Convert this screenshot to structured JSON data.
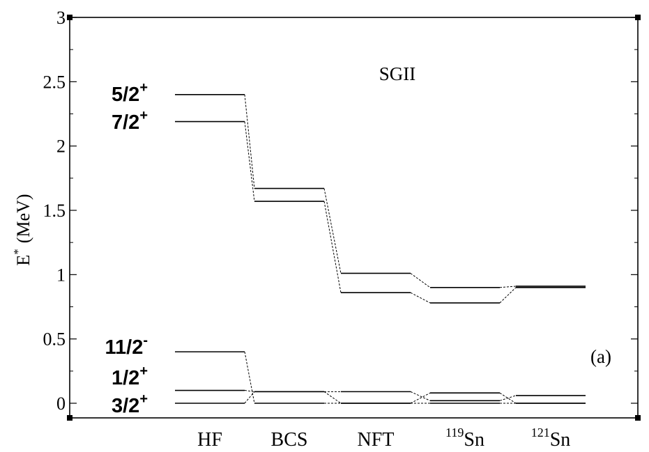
{
  "chart_data": {
    "type": "line",
    "title": "SGII",
    "ylabel": "E",
    "ylabel_superscript": "*",
    "ylabel_unit": "(MeV)",
    "panel_label": "(a)",
    "ylim": [
      0,
      3
    ],
    "yticks": [
      0,
      0.5,
      1,
      1.5,
      2,
      2.5,
      3
    ],
    "ytick_labels": [
      "0",
      "0.5",
      "1",
      "1.5",
      "2",
      "2.5",
      "3"
    ],
    "grid": false,
    "categories": [
      {
        "base": "HF",
        "pre": ""
      },
      {
        "base": "BCS",
        "pre": ""
      },
      {
        "base": "NFT",
        "pre": ""
      },
      {
        "base": "Sn",
        "pre": "119"
      },
      {
        "base": "Sn",
        "pre": "121"
      }
    ],
    "series": [
      {
        "name": "5/2+",
        "label_main": "5/2",
        "label_sup": "+",
        "values": [
          2.4,
          1.67,
          1.01,
          0.9,
          0.91
        ]
      },
      {
        "name": "7/2+",
        "label_main": "7/2",
        "label_sup": "+",
        "values": [
          2.19,
          1.57,
          0.86,
          0.78,
          0.9
        ]
      },
      {
        "name": "11/2-",
        "label_main": "11/2",
        "label_sup": "-",
        "values": [
          0.4,
          0.0,
          0.0,
          0.0,
          0.0
        ]
      },
      {
        "name": "1/2+",
        "label_main": "1/2",
        "label_sup": "+",
        "values": [
          0.1,
          0.09,
          0.09,
          0.02,
          0.06
        ]
      },
      {
        "name": "3/2+",
        "label_main": "3/2",
        "label_sup": "+",
        "values": [
          0.0,
          0.09,
          0.0,
          0.08,
          0.0
        ]
      }
    ]
  }
}
